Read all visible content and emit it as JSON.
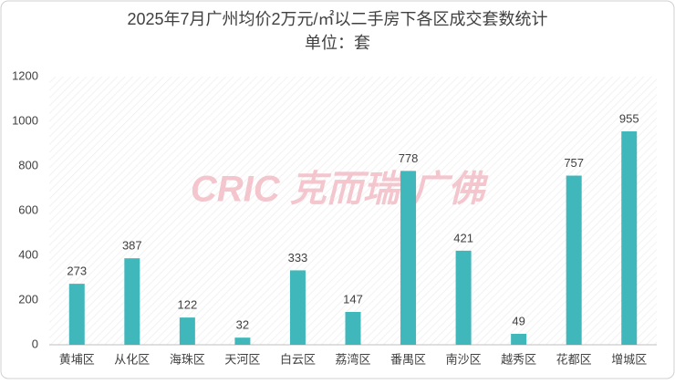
{
  "chart_data": {
    "type": "bar",
    "title": "2025年7月广州均价2万元/㎡以二手房下各区成交套数统计",
    "subtitle": "单位：套",
    "watermark": "CRIC 克而瑞·广佛",
    "categories": [
      "黄埔区",
      "从化区",
      "海珠区",
      "天河区",
      "白云区",
      "荔湾区",
      "番禺区",
      "南沙区",
      "越秀区",
      "花都区",
      "增城区"
    ],
    "values": [
      273,
      387,
      122,
      32,
      333,
      147,
      778,
      421,
      49,
      757,
      955
    ],
    "color": "#40b7bb",
    "ylim": [
      0,
      1200
    ],
    "yticks": [
      0,
      200,
      400,
      600,
      800,
      1000,
      1200
    ],
    "grid": false
  }
}
